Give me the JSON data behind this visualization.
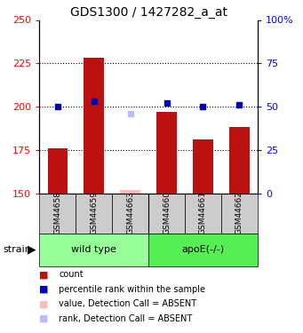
{
  "title": "GDS1300 / 1427282_a_at",
  "samples": [
    "GSM44658",
    "GSM44659",
    "GSM44663",
    "GSM44660",
    "GSM44661",
    "GSM44662"
  ],
  "bar_values": [
    176,
    228,
    152,
    197,
    181,
    188
  ],
  "bar_bottom": 150,
  "rank_values": [
    50,
    53,
    null,
    52,
    50,
    51
  ],
  "absent_value": 152,
  "absent_rank": 196,
  "absent_sample_idx": 2,
  "ylim_left": [
    150,
    250
  ],
  "ylim_right": [
    0,
    100
  ],
  "yticks_left": [
    150,
    175,
    200,
    225,
    250
  ],
  "yticks_right": [
    0,
    25,
    50,
    75,
    100
  ],
  "ytick_right_labels": [
    "0",
    "25",
    "50",
    "75",
    "100%"
  ],
  "bar_color": "#bb1111",
  "rank_color": "#0000bb",
  "absent_bar_color": "#ffbbbb",
  "absent_rank_color": "#bbbbff",
  "grid_color": "#000000",
  "group_colors": [
    "#99ff99",
    "#55ee55"
  ],
  "sample_bg": "#cccccc",
  "figsize": [
    3.41,
    3.75
  ],
  "dpi": 100,
  "legend_items": [
    {
      "color": "#bb1111",
      "label": "count"
    },
    {
      "color": "#0000bb",
      "label": "percentile rank within the sample"
    },
    {
      "color": "#ffbbbb",
      "label": "value, Detection Call = ABSENT"
    },
    {
      "color": "#bbbbff",
      "label": "rank, Detection Call = ABSENT"
    }
  ]
}
